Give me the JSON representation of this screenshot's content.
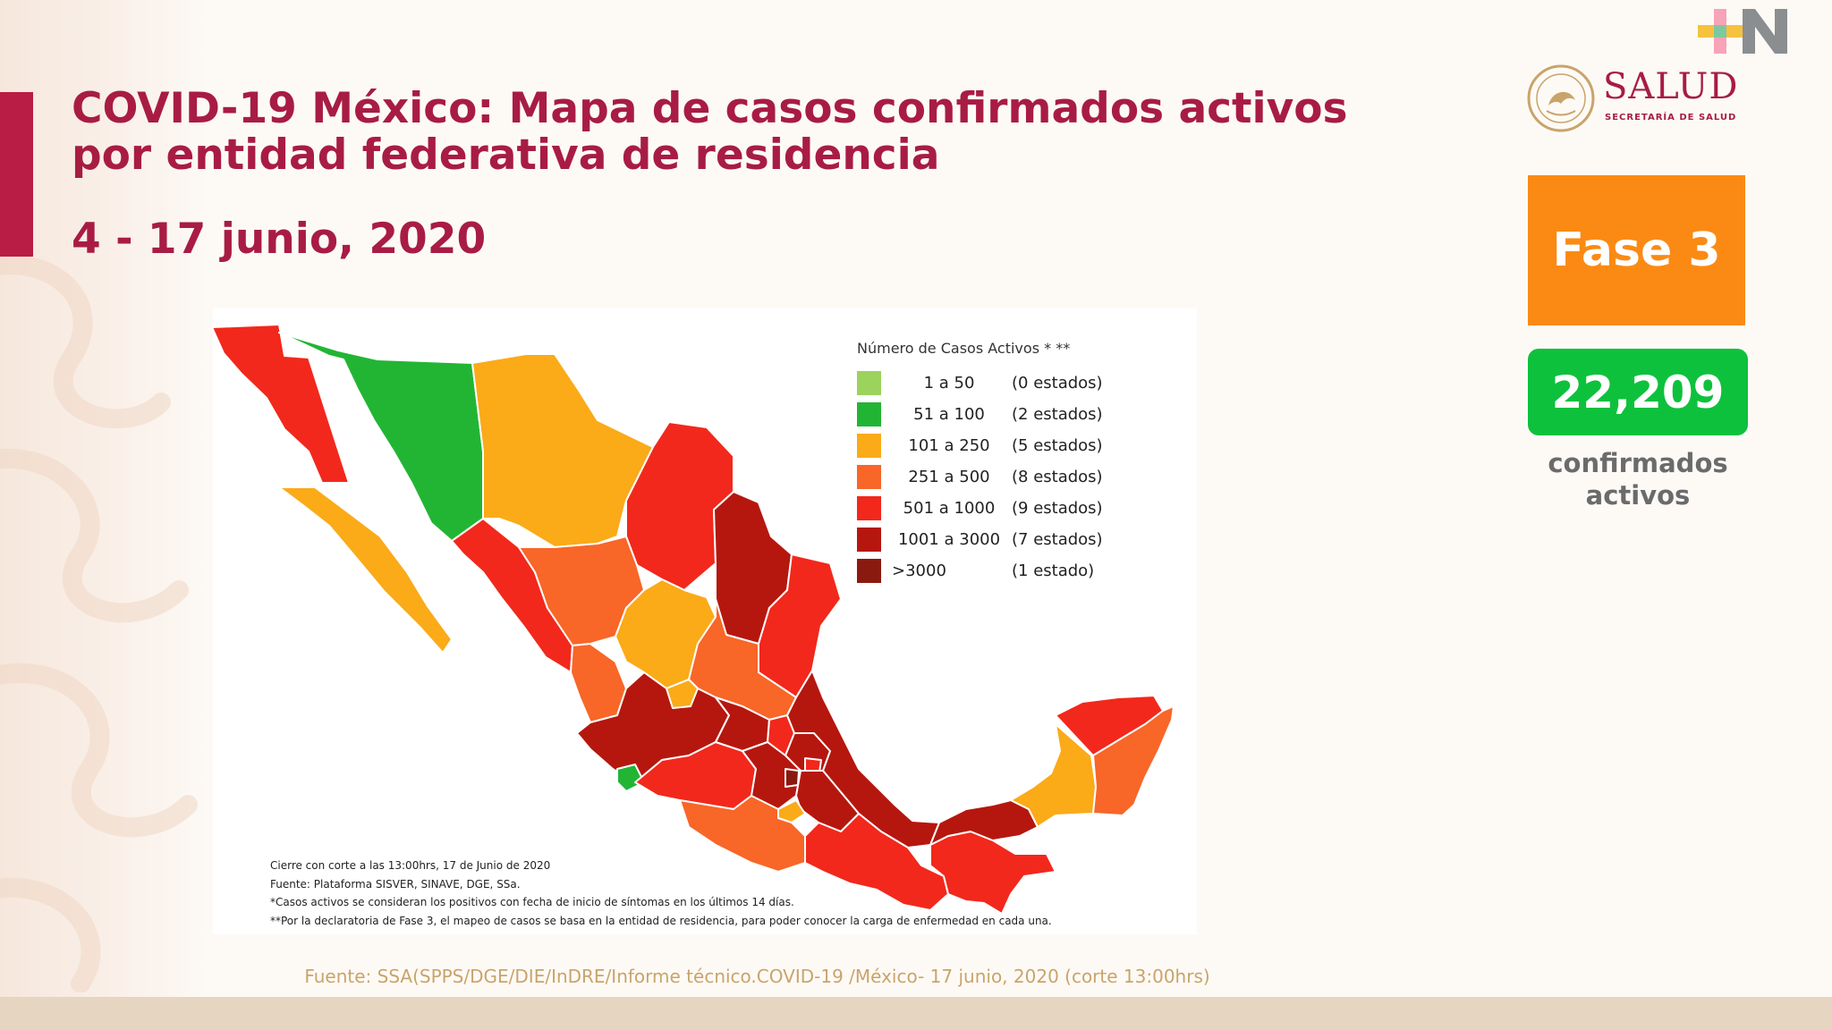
{
  "header": {
    "title": "COVID-19 México: Mapa de casos confirmados activos por entidad federativa de residencia",
    "date_range": "4 - 17 junio, 2020"
  },
  "logos": {
    "salud": "SALUD",
    "salud_sub": "SECRETARÍA DE SALUD"
  },
  "phase": {
    "label": "Fase 3",
    "color": "#fb8a14"
  },
  "active_cases": {
    "value": "22,209",
    "label": "confirmados activos",
    "color": "#0ec13c"
  },
  "legend": {
    "title": "Número de Casos Activos * **",
    "items": [
      {
        "range": "1 a 50",
        "count": "(0 estados)",
        "color": "#9cd35c"
      },
      {
        "range": "51 a 100",
        "count": "(2 estados)",
        "color": "#22b534"
      },
      {
        "range": "101 a 250",
        "count": "(5 estados)",
        "color": "#fbaa18"
      },
      {
        "range": "251 a 500",
        "count": "(8 estados)",
        "color": "#f86628"
      },
      {
        "range": "501 a 1000",
        "count": "(9 estados)",
        "color": "#f2281c"
      },
      {
        "range": "1001 a 3000",
        "count": "(7 estados)",
        "color": "#b5170f"
      },
      {
        "range": ">3000",
        "count": "(1 estado)",
        "color": "#8a1a10"
      }
    ]
  },
  "notes": [
    "Cierre con corte a las 13:00hrs, 17 de Junio de 2020",
    "Fuente: Plataforma SISVER, SINAVE, DGE, SSa.",
    "*Casos activos se consideran los positivos con fecha de inicio de síntomas en los últimos 14 días.",
    "**Por la declaratoria de Fase 3, el mapeo de casos se basa en la entidad de residencia, para poder conocer la carga de enfermedad en cada una."
  ],
  "source": "Fuente: SSA(SPPS/DGE/DIE/InDRE/Informe técnico.COVID-19 /México- 17 junio, 2020 (corte 13:00hrs)"
}
